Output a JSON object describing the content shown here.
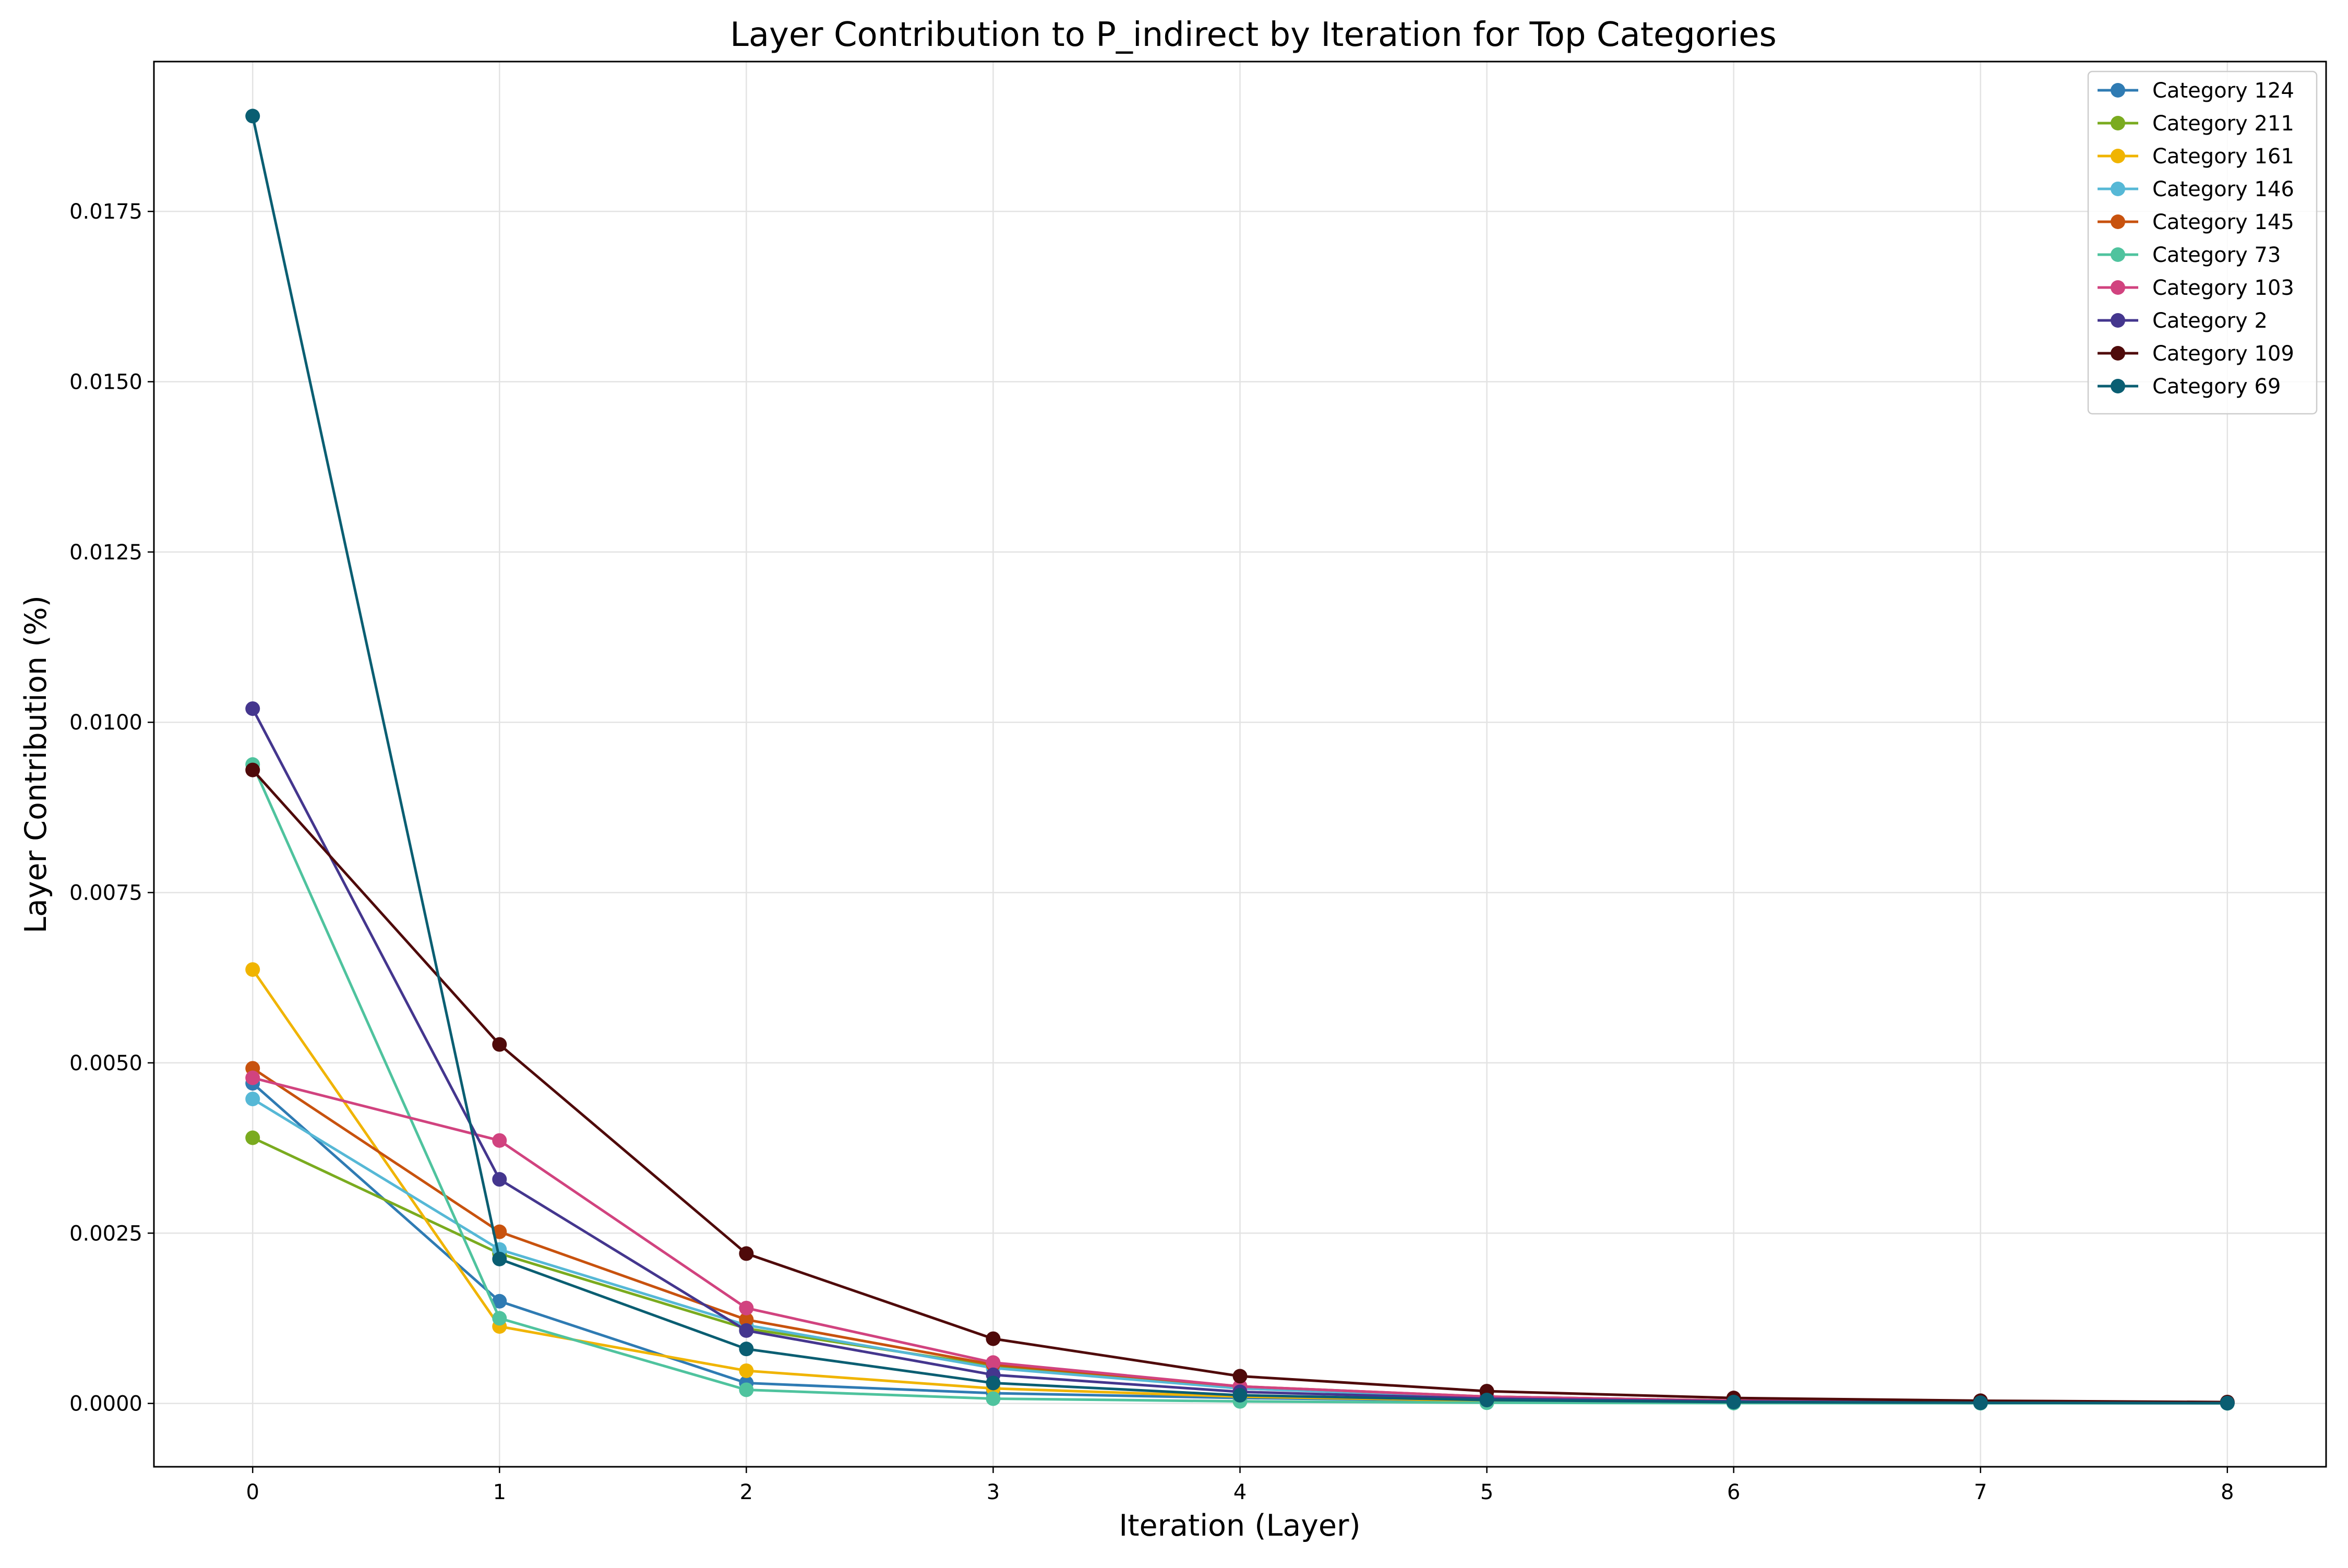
{
  "chart_data": {
    "type": "line",
    "title": "Layer Contribution to P_indirect by Iteration for Top Categories",
    "xlabel": "Iteration (Layer)",
    "ylabel": "Layer Contribution (%)",
    "x": [
      0,
      1,
      2,
      3,
      4,
      5,
      6,
      7,
      8
    ],
    "xlim": [
      -0.4,
      8.4
    ],
    "ylim": [
      -0.00093,
      0.0197
    ],
    "xticks": [
      "0",
      "1",
      "2",
      "3",
      "4",
      "5",
      "6",
      "7",
      "8"
    ],
    "yticks": [
      {
        "value": 0.0,
        "label": "0.0000"
      },
      {
        "value": 0.0025,
        "label": "0.0025"
      },
      {
        "value": 0.005,
        "label": "0.0050"
      },
      {
        "value": 0.0075,
        "label": "0.0075"
      },
      {
        "value": 0.01,
        "label": "0.0100"
      },
      {
        "value": 0.0125,
        "label": "0.0125"
      },
      {
        "value": 0.015,
        "label": "0.0150"
      },
      {
        "value": 0.0175,
        "label": "0.0175"
      }
    ],
    "grid": true,
    "legend_position": "top-right",
    "series": [
      {
        "name": "Category 124",
        "color": "#2f7bb3",
        "values": [
          0.0047,
          0.0015,
          0.0003,
          0.00015,
          8e-05,
          4e-05,
          2e-05,
          1e-05,
          5e-06
        ]
      },
      {
        "name": "Category 211",
        "color": "#7aab1f",
        "values": [
          0.0039,
          0.0022,
          0.0011,
          0.00055,
          0.00022,
          0.0001,
          4e-05,
          2e-05,
          1e-05
        ]
      },
      {
        "name": "Category 161",
        "color": "#f0b400",
        "values": [
          0.00637,
          0.00113,
          0.00048,
          0.00022,
          0.0001,
          4e-05,
          2e-05,
          1e-05,
          5e-06
        ]
      },
      {
        "name": "Category 146",
        "color": "#56b8d6",
        "values": [
          0.00447,
          0.00226,
          0.00115,
          0.00052,
          0.00022,
          9e-05,
          4e-05,
          2e-05,
          1e-05
        ]
      },
      {
        "name": "Category 145",
        "color": "#c8520e",
        "values": [
          0.00492,
          0.00252,
          0.00123,
          0.00057,
          0.00025,
          0.0001,
          4e-05,
          2e-05,
          1e-05
        ]
      },
      {
        "name": "Category 73",
        "color": "#4fc39e",
        "values": [
          0.00938,
          0.00125,
          0.0002,
          7e-05,
          3e-05,
          1e-05,
          5e-06,
          3e-06,
          1e-06
        ]
      },
      {
        "name": "Category 103",
        "color": "#d1437f",
        "values": [
          0.00478,
          0.00386,
          0.0014,
          0.0006,
          0.00025,
          0.0001,
          4e-05,
          2e-05,
          1e-05
        ]
      },
      {
        "name": "Category 2",
        "color": "#44368e",
        "values": [
          0.0102,
          0.00329,
          0.00107,
          0.00042,
          0.00017,
          7e-05,
          3e-05,
          1e-05,
          5e-06
        ]
      },
      {
        "name": "Category 109",
        "color": "#4f0a0a",
        "values": [
          0.0093,
          0.00527,
          0.0022,
          0.00095,
          0.0004,
          0.00018,
          8e-05,
          4e-05,
          2e-05
        ]
      },
      {
        "name": "Category 69",
        "color": "#0a5e72",
        "values": [
          0.0189,
          0.00212,
          0.0008,
          0.0003,
          0.00012,
          5e-05,
          2e-05,
          1e-05,
          5e-06
        ]
      }
    ]
  }
}
